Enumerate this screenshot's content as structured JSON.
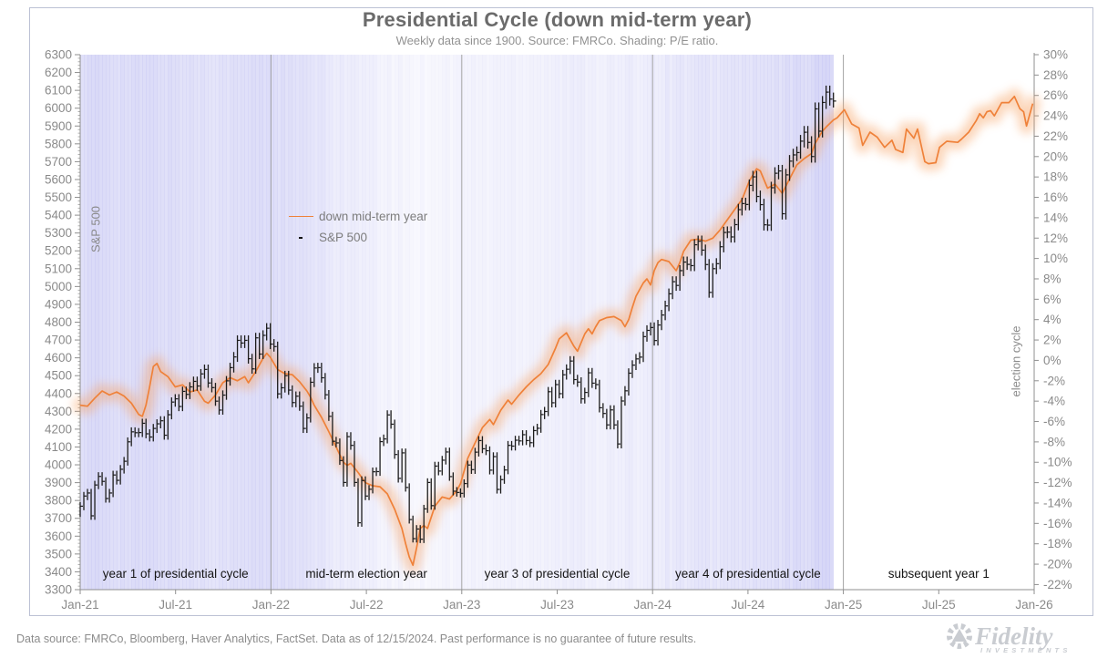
{
  "header": {
    "title": "Presidential Cycle (down mid-term year)",
    "subtitle": "Weekly data since 1900. Source: FMRCo. Shading: P/E ratio."
  },
  "legend": {
    "line_label": "down mid-term year",
    "marker_label": "S&P 500"
  },
  "axes": {
    "left_label": "S&P 500",
    "right_label": "election cycle",
    "left_ticks": [
      6300,
      6200,
      6100,
      6000,
      5900,
      5800,
      5700,
      5600,
      5500,
      5400,
      5300,
      5200,
      5100,
      5000,
      4900,
      4800,
      4700,
      4600,
      4500,
      4400,
      4300,
      4200,
      4100,
      4000,
      3900,
      3800,
      3700,
      3600,
      3500,
      3400,
      3300
    ],
    "right_ticks": [
      "30%",
      "28%",
      "26%",
      "24%",
      "22%",
      "20%",
      "18%",
      "16%",
      "14%",
      "12%",
      "10%",
      "8%",
      "6%",
      "4%",
      "2%",
      "0%",
      "-2%",
      "-4%",
      "-6%",
      "-8%",
      "-10%",
      "-12%",
      "-14%",
      "-16%",
      "-18%",
      "-20%",
      "-22%"
    ],
    "x_ticks": [
      "Jan-21",
      "Jul-21",
      "Jan-22",
      "Jul-22",
      "Jan-23",
      "Jul-23",
      "Jan-24",
      "Jul-24",
      "Jan-25",
      "Jul-25",
      "Jan-26"
    ]
  },
  "phases": [
    "year 1 of presidential cycle",
    "mid-term election year",
    "year 3 of presidential cycle",
    "year 4 of presidential cycle",
    "subsequent year 1"
  ],
  "footer": {
    "text": "Data source: FMRCo, Bloomberg, Haver Analytics, FactSet. Data as of 12/15/2024. Past performance is no guarantee of future results.",
    "logo_text": "Fidelity",
    "logo_sub": "INVESTMENTS"
  },
  "colors": {
    "orange": "#ef8139",
    "orange_glow": "#f7a263",
    "bar": "#1c1c1c",
    "shade_rgb": "124,124,228",
    "grid": "#a3a3a3",
    "axis_line": "#8f8f8f",
    "axis_text": "#8a8a8a",
    "logo_gray": "#c9ccd1"
  },
  "chart_data": {
    "type": "line+hlc-bars",
    "title": "Presidential Cycle (down mid-term year)",
    "x_start": "Jan-2021",
    "x_end": "Jan-2026",
    "weeks_per_year": 52.18,
    "left_axis_range": [
      3300,
      6300
    ],
    "right_axis_range_pct": [
      -22.5,
      30
    ],
    "sp500_weekly_close": [
      3768,
      3825,
      3842,
      3714,
      3887,
      3935,
      3907,
      3811,
      3842,
      3943,
      3913,
      3975,
      4020,
      4129,
      4185,
      4180,
      4181,
      4233,
      4174,
      4156,
      4204,
      4230,
      4247,
      4166,
      4281,
      4352,
      4370,
      4327,
      4412,
      4395,
      4437,
      4468,
      4442,
      4510,
      4535,
      4459,
      4433,
      4357,
      4307,
      4391,
      4471,
      4545,
      4605,
      4698,
      4683,
      4698,
      4595,
      4538,
      4712,
      4621,
      4726,
      4766,
      4677,
      4663,
      4398,
      4432,
      4500,
      4419,
      4349,
      4385,
      4329,
      4204,
      4263,
      4463,
      4543,
      4545,
      4488,
      4393,
      4272,
      4132,
      4123,
      4024,
      3901,
      4158,
      4109,
      3901,
      3675,
      3912,
      3825,
      3863,
      3961,
      3962,
      4130,
      4145,
      4280,
      4228,
      4058,
      3924,
      4067,
      3873,
      3693,
      3586,
      3640,
      3583,
      3753,
      3901,
      3771,
      3993,
      3965,
      4026,
      4072,
      3934,
      3852,
      3845,
      3840,
      3895,
      3999,
      3973,
      4071,
      4136,
      4090,
      4079,
      3970,
      4046,
      3862,
      3917,
      3971,
      4109,
      4105,
      4138,
      4134,
      4169,
      4136,
      4124,
      4192,
      4205,
      4282,
      4299,
      4410,
      4348,
      4450,
      4399,
      4505,
      4536,
      4582,
      4478,
      4464,
      4370,
      4406,
      4516,
      4458,
      4450,
      4320,
      4288,
      4224,
      4308,
      4224,
      4117,
      4358,
      4415,
      4514,
      4559,
      4594,
      4604,
      4719,
      4754,
      4770,
      4697,
      4784,
      4840,
      4891,
      4959,
      5027,
      5006,
      5089,
      5137,
      5124,
      5117,
      5234,
      5254,
      5204,
      5123,
      4967,
      5100,
      5128,
      5223,
      5303,
      5305,
      5278,
      5347,
      5431,
      5465,
      5460,
      5567,
      5615,
      5505,
      5459,
      5346,
      5344,
      5554,
      5635,
      5648,
      5408,
      5626,
      5703,
      5738,
      5751,
      5815,
      5865,
      5808,
      5729,
      5996,
      5871,
      6032,
      6090,
      6051,
      6040
    ],
    "cycle_line_week_pct": [
      [
        0,
        -4.4
      ],
      [
        2,
        -4.5
      ],
      [
        4,
        -3.7
      ],
      [
        6,
        -3.0
      ],
      [
        8,
        -3.4
      ],
      [
        10,
        -3.1
      ],
      [
        12,
        -3.5
      ],
      [
        14,
        -4.2
      ],
      [
        16,
        -5.3
      ],
      [
        17,
        -5.5
      ],
      [
        18,
        -4.4
      ],
      [
        19,
        -2.6
      ],
      [
        20,
        -0.6
      ],
      [
        21,
        -0.3
      ],
      [
        22,
        -1.1
      ],
      [
        24,
        -1.6
      ],
      [
        26,
        -2.6
      ],
      [
        28,
        -2.4
      ],
      [
        30,
        -3.1
      ],
      [
        32,
        -2.9
      ],
      [
        34,
        -4.0
      ],
      [
        35,
        -4.2
      ],
      [
        37,
        -3.4
      ],
      [
        39,
        -2.2
      ],
      [
        41,
        -1.7
      ],
      [
        43,
        -2.0
      ],
      [
        45,
        -1.6
      ],
      [
        46,
        -2.2
      ],
      [
        48,
        -1.1
      ],
      [
        50,
        0.2
      ],
      [
        51,
        0.7
      ],
      [
        52,
        0.3
      ],
      [
        53,
        -0.3
      ],
      [
        54,
        -0.9
      ],
      [
        56,
        -1.3
      ],
      [
        58,
        -1.4
      ],
      [
        60,
        -2.1
      ],
      [
        62,
        -3.0
      ],
      [
        63,
        -3.6
      ],
      [
        64,
        -4.4
      ],
      [
        66,
        -5.6
      ],
      [
        68,
        -7.0
      ],
      [
        70,
        -8.5
      ],
      [
        72,
        -10.0
      ],
      [
        73,
        -10.3
      ],
      [
        74,
        -10.1
      ],
      [
        76,
        -11.0
      ],
      [
        78,
        -12.0
      ],
      [
        80,
        -12.3
      ],
      [
        82,
        -12.4
      ],
      [
        84,
        -13.1
      ],
      [
        86,
        -14.6
      ],
      [
        88,
        -16.5
      ],
      [
        89,
        -18.0
      ],
      [
        90,
        -19.3
      ],
      [
        91,
        -20.1
      ],
      [
        92,
        -18.4
      ],
      [
        93,
        -16.5
      ],
      [
        94,
        -16.2
      ],
      [
        95,
        -16.5
      ],
      [
        97,
        -14.3
      ],
      [
        99,
        -13.4
      ],
      [
        101,
        -13.6
      ],
      [
        103,
        -12.8
      ],
      [
        104,
        -12.1
      ],
      [
        106,
        -9.6
      ],
      [
        108,
        -8.1
      ],
      [
        110,
        -6.6
      ],
      [
        112,
        -5.8
      ],
      [
        113,
        -6.3
      ],
      [
        115,
        -4.9
      ],
      [
        117,
        -3.9
      ],
      [
        118,
        -4.3
      ],
      [
        120,
        -3.4
      ],
      [
        122,
        -2.6
      ],
      [
        124,
        -1.9
      ],
      [
        126,
        -1.3
      ],
      [
        128,
        -0.4
      ],
      [
        130,
        1.2
      ],
      [
        131,
        2.1
      ],
      [
        133,
        2.7
      ],
      [
        135,
        1.4
      ],
      [
        136,
        0.9
      ],
      [
        138,
        2.6
      ],
      [
        139,
        3.1
      ],
      [
        140,
        2.6
      ],
      [
        141,
        3.3
      ],
      [
        142,
        3.9
      ],
      [
        144,
        4.2
      ],
      [
        146,
        4.3
      ],
      [
        148,
        3.9
      ],
      [
        149,
        3.3
      ],
      [
        150,
        4.0
      ],
      [
        151,
        5.2
      ],
      [
        152,
        6.3
      ],
      [
        154,
        7.6
      ],
      [
        155,
        8.0
      ],
      [
        156,
        7.4
      ],
      [
        157,
        8.8
      ],
      [
        158,
        9.6
      ],
      [
        159,
        9.9
      ],
      [
        161,
        9.7
      ],
      [
        163,
        8.8
      ],
      [
        164,
        9.6
      ],
      [
        165,
        10.7
      ],
      [
        167,
        11.8
      ],
      [
        169,
        11.9
      ],
      [
        171,
        11.7
      ],
      [
        173,
        12.0
      ],
      [
        175,
        12.8
      ],
      [
        178,
        14.3
      ],
      [
        181,
        15.8
      ],
      [
        183,
        17.6
      ],
      [
        185,
        18.8
      ],
      [
        186,
        18.6
      ],
      [
        188,
        16.9
      ],
      [
        190,
        17.3
      ],
      [
        192,
        16.4
      ],
      [
        194,
        17.8
      ],
      [
        196,
        19.2
      ],
      [
        198,
        19.8
      ],
      [
        200,
        20.3
      ],
      [
        201,
        21.3
      ],
      [
        203,
        22.5
      ],
      [
        204,
        22.9
      ],
      [
        206,
        23.6
      ],
      [
        207,
        23.8
      ],
      [
        209,
        24.6
      ],
      [
        211,
        23.2
      ],
      [
        213,
        22.8
      ],
      [
        214,
        21.1
      ],
      [
        216,
        22.4
      ],
      [
        218,
        21.9
      ],
      [
        220,
        20.9
      ],
      [
        222,
        21.6
      ],
      [
        223,
        20.7
      ],
      [
        225,
        20.4
      ],
      [
        226,
        22.7
      ],
      [
        228,
        21.8
      ],
      [
        229,
        22.7
      ],
      [
        230,
        21.1
      ],
      [
        231,
        19.5
      ],
      [
        232,
        19.3
      ],
      [
        234,
        19.4
      ],
      [
        235,
        20.9
      ],
      [
        237,
        21.5
      ],
      [
        240,
        21.4
      ],
      [
        241,
        21.7
      ],
      [
        243,
        22.4
      ],
      [
        245,
        23.5
      ],
      [
        246,
        24.2
      ],
      [
        247,
        23.8
      ],
      [
        248,
        24.4
      ],
      [
        249,
        24.5
      ],
      [
        250,
        24.0
      ],
      [
        252,
        25.3
      ],
      [
        254,
        25.3
      ],
      [
        255.5,
        25.9
      ],
      [
        257,
        24.7
      ],
      [
        258,
        24.4
      ],
      [
        258.8,
        23.0
      ],
      [
        260.5,
        25.2
      ]
    ],
    "shading_pe_intensity_week_alpha": [
      [
        0,
        0.26
      ],
      [
        6,
        0.27
      ],
      [
        12,
        0.25
      ],
      [
        18,
        0.26
      ],
      [
        24,
        0.25
      ],
      [
        30,
        0.23
      ],
      [
        36,
        0.22
      ],
      [
        42,
        0.23
      ],
      [
        48,
        0.25
      ],
      [
        52,
        0.26
      ],
      [
        56,
        0.23
      ],
      [
        62,
        0.2
      ],
      [
        68,
        0.16
      ],
      [
        74,
        0.13
      ],
      [
        80,
        0.1
      ],
      [
        86,
        0.08
      ],
      [
        91,
        0.065
      ],
      [
        96,
        0.075
      ],
      [
        104,
        0.085
      ],
      [
        112,
        0.095
      ],
      [
        120,
        0.105
      ],
      [
        128,
        0.115
      ],
      [
        134,
        0.125
      ],
      [
        140,
        0.12
      ],
      [
        146,
        0.115
      ],
      [
        152,
        0.13
      ],
      [
        156,
        0.15
      ],
      [
        162,
        0.17
      ],
      [
        168,
        0.18
      ],
      [
        175,
        0.19
      ],
      [
        182,
        0.21
      ],
      [
        188,
        0.22
      ],
      [
        192,
        0.24
      ],
      [
        196,
        0.26
      ],
      [
        200,
        0.28
      ],
      [
        206,
        0.31
      ]
    ]
  }
}
